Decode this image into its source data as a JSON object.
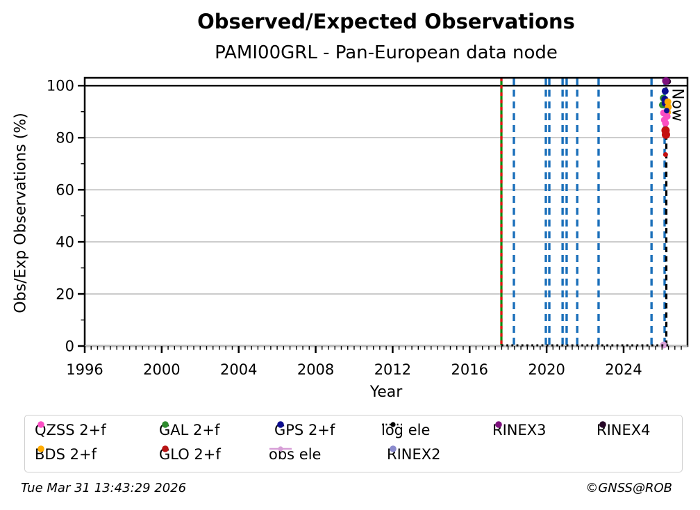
{
  "title": "Observed/Expected Observations",
  "subtitle": "PAMI00GRL - Pan-European data node",
  "footer": {
    "timestamp": "Tue Mar 31 13:43:29 2026",
    "copyright": "©GNSS@ROB"
  },
  "chart_data": {
    "type": "scatter",
    "title": "Observed/Expected Observations",
    "subtitle": "PAMI00GRL - Pan-European data node",
    "xlabel": "Year",
    "ylabel": "Obs/Exp Observations (%)",
    "xlim": [
      1996,
      2027.32
    ],
    "ylim": [
      0,
      103
    ],
    "xticks": [
      1996,
      2000,
      2004,
      2008,
      2012,
      2016,
      2020,
      2024
    ],
    "yticks": [
      0,
      20,
      40,
      60,
      80,
      100
    ],
    "x_minor_step": 0.3333,
    "y_minor_step": 10,
    "grid_y": [
      0,
      20,
      40,
      60,
      80
    ],
    "grid_color": "#bdbdbd",
    "reference_line": {
      "y": 100,
      "color": "#000000"
    },
    "event_lines": {
      "green_solid": {
        "x": 2017.65,
        "color": "#0c8a0c",
        "overlay_color": "#e31212",
        "overlay_style": "dashed"
      },
      "blue_dashed": {
        "x": [
          2018.3,
          2019.96,
          2020.14,
          2020.83,
          2021.04,
          2021.59,
          2022.7,
          2025.45,
          2026.13
        ],
        "color": "#1a6fba"
      },
      "now": {
        "x": 2026.22,
        "label": "Now",
        "color": "#000000",
        "style": "dashed"
      }
    },
    "log_ele_line": {
      "y": 0,
      "x_start": 2017.65,
      "x_end": 2026.32,
      "color": "#000000",
      "style": "dotted",
      "legend": "log ele"
    },
    "obs_ele_point": {
      "x": 2026.08,
      "y": 0.4,
      "color": "#d79fd7",
      "legend": "obs ele"
    },
    "series": [
      {
        "name": "GAL 2+f",
        "color": "#2e8b2e",
        "points": [
          [
            2026.06,
            95.2
          ],
          [
            2026.02,
            92.6
          ]
        ]
      },
      {
        "name": "GPS 2+f",
        "color": "#0d0d8f",
        "points": [
          [
            2026.16,
            97.9
          ],
          [
            2026.14,
            94.8
          ],
          [
            2026.16,
            93.2
          ]
        ]
      },
      {
        "name": "BDS 2+f",
        "color": "#ffab00",
        "points": [
          [
            2026.3,
            93.8
          ],
          [
            2026.32,
            91.8
          ],
          [
            2026.28,
            89.8
          ]
        ]
      },
      {
        "name": "QZSS 2+f",
        "color": "#fb4fc3",
        "points": [
          [
            2026.08,
            89.5
          ],
          [
            2026.26,
            88.2
          ],
          [
            2026.12,
            86.8
          ],
          [
            2026.18,
            85.6
          ]
        ]
      },
      {
        "name": "GPS 2+f",
        "color": "#0d0d8f",
        "points": [
          [
            2026.24,
            90.4,
            4
          ]
        ]
      },
      {
        "name": "GLO 2+f",
        "color": "#c41010",
        "points": [
          [
            2026.18,
            82.8,
            6
          ],
          [
            2026.2,
            81.2,
            6
          ],
          [
            2026.18,
            73.5,
            3.5
          ]
        ]
      },
      {
        "name": "RINEX4",
        "color": "#260627",
        "points": [
          [
            2026.3,
            101.6,
            4.5
          ]
        ]
      },
      {
        "name": "RINEX3",
        "color": "#7d107d",
        "points": [
          [
            2026.2,
            101.8,
            5.5
          ]
        ]
      }
    ],
    "legend": {
      "items": [
        {
          "label": "QZSS 2+f",
          "marker": "dot",
          "color": "#fb4fc3",
          "col": 0,
          "row": 0
        },
        {
          "label": "BDS 2+f",
          "marker": "dot",
          "color": "#ffab00",
          "col": 0,
          "row": 1
        },
        {
          "label": "GAL 2+f",
          "marker": "dot",
          "color": "#2e8b2e",
          "col": 1,
          "row": 0
        },
        {
          "label": "GLO 2+f",
          "marker": "dot",
          "color": "#b81414",
          "col": 1,
          "row": 1
        },
        {
          "label": "GPS 2+f",
          "marker": "dot",
          "color": "#0d0d8f",
          "col": 2,
          "row": 0
        },
        {
          "label": "obs ele",
          "marker": "solid-line",
          "color": "#d79fd7",
          "col": 2,
          "row": 1
        },
        {
          "label": "log ele",
          "marker": "dotted-line",
          "color": "#000000",
          "col": 3,
          "row": 0
        },
        {
          "label": "RINEX2",
          "marker": "dot",
          "color": "#8b8bcd",
          "col": 3,
          "row": 1
        },
        {
          "label": "RINEX3",
          "marker": "dot",
          "color": "#7d107d",
          "col": 4,
          "row": 0
        },
        {
          "label": "RINEX4",
          "marker": "dot",
          "color": "#260627",
          "col": 5,
          "row": 0
        }
      ]
    }
  }
}
